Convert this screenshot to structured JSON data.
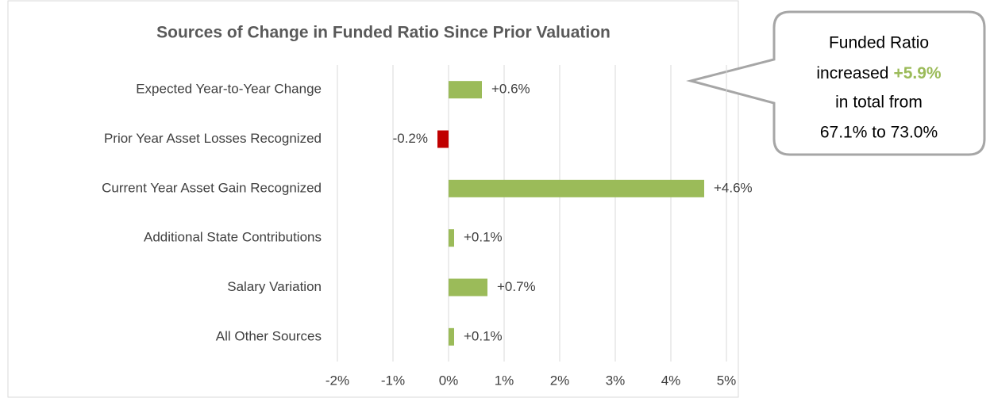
{
  "chart_data": {
    "type": "hbar",
    "title": "Sources of Change in Funded Ratio Since Prior Valuation",
    "categories": [
      "Expected Year-to-Year Change",
      "Prior Year Asset Losses Recognized",
      "Current Year Asset Gain Recognized",
      "Additional State Contributions",
      "Salary Variation",
      "All Other Sources"
    ],
    "values": [
      0.6,
      -0.2,
      4.6,
      0.1,
      0.7,
      0.1
    ],
    "value_labels": [
      "+0.6%",
      "-0.2%",
      "+4.6%",
      "+0.1%",
      "+0.7%",
      "+0.1%"
    ],
    "color": "#9bbb59",
    "negative_color": "#c00000",
    "xlim": [
      -2,
      5
    ],
    "xticks": [
      {
        "value": -2,
        "label": "-2%"
      },
      {
        "value": -1,
        "label": "-1%"
      },
      {
        "value": 0,
        "label": "0%"
      },
      {
        "value": 1,
        "label": "1%"
      },
      {
        "value": 2,
        "label": "2%"
      },
      {
        "value": 3,
        "label": "3%"
      },
      {
        "value": 4,
        "label": "4%"
      },
      {
        "value": 5,
        "label": "5%"
      }
    ],
    "grid": true,
    "annotation": {
      "line1": "Funded Ratio",
      "line2": "increased",
      "highlight": "+5.9%",
      "line3": "in total from",
      "line4": "67.1% to 73.0%",
      "highlight_color": "#9bbb59"
    }
  }
}
